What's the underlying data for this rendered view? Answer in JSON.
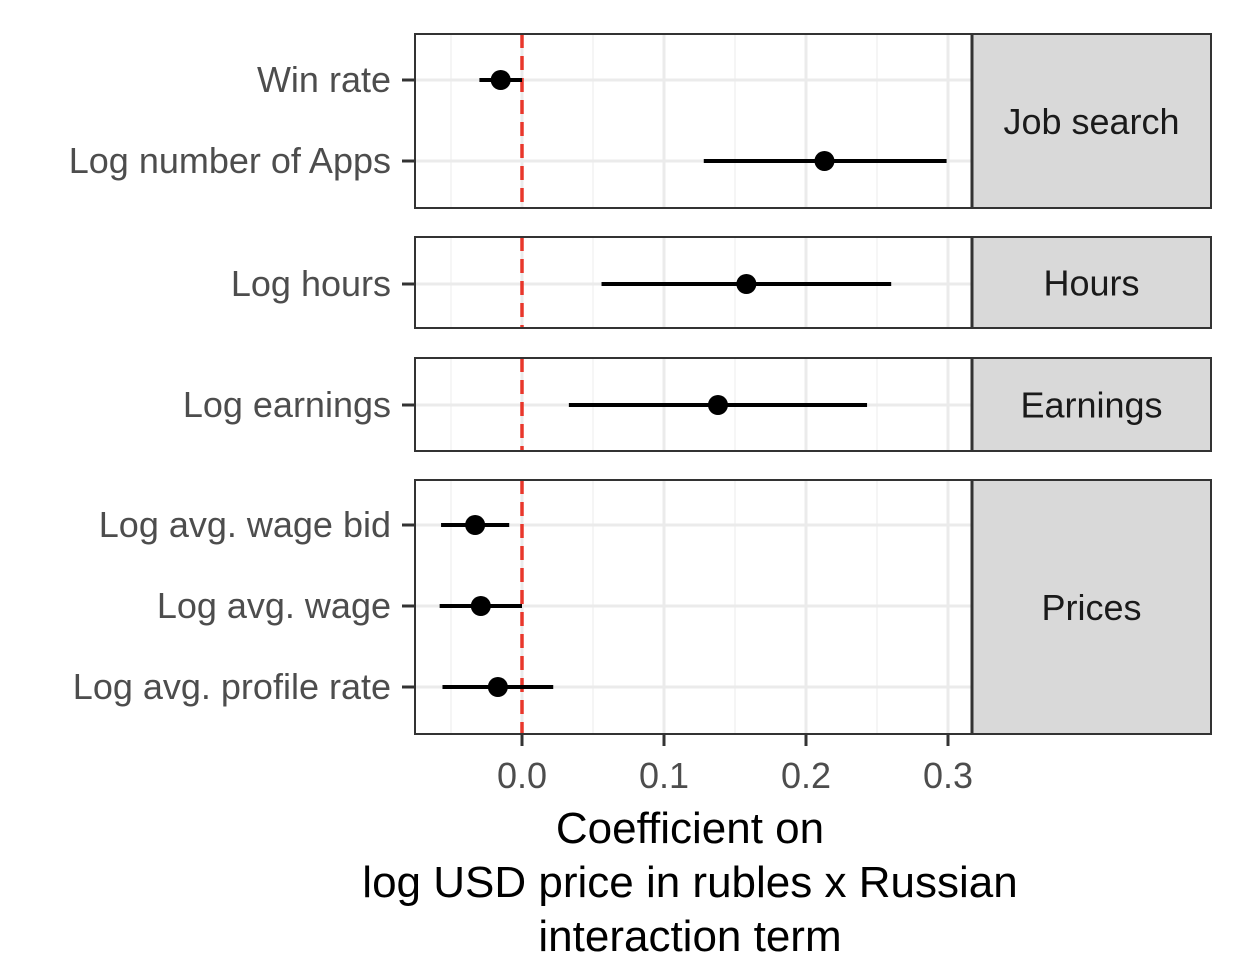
{
  "chart_data": {
    "type": "scatter",
    "subtype": "coefficient-plot-with-error-bars",
    "title": "",
    "xlabel_lines": [
      "Coefficient on",
      "log USD price in rubles x Russian",
      "interaction term"
    ],
    "ylabel": "",
    "xlim": [
      -0.075,
      0.318
    ],
    "xticks": [
      0.0,
      0.1,
      0.2,
      0.3
    ],
    "xtick_labels": [
      "0.0",
      "0.1",
      "0.2",
      "0.3"
    ],
    "reference_line": {
      "x": 0.0,
      "color": "#e8372b",
      "style": "dashed"
    },
    "grid": true,
    "legend": "none",
    "point_color": "#000000",
    "strip_fill": "#d9d9d9",
    "facets": [
      {
        "strip_label": "Job search",
        "rows": [
          {
            "label": "Win rate",
            "estimate": -0.015,
            "ci_low": -0.03,
            "ci_high": 0.0
          },
          {
            "label": "Log number of Apps",
            "estimate": 0.213,
            "ci_low": 0.128,
            "ci_high": 0.299
          }
        ]
      },
      {
        "strip_label": "Hours",
        "rows": [
          {
            "label": "Log hours",
            "estimate": 0.158,
            "ci_low": 0.056,
            "ci_high": 0.26
          }
        ]
      },
      {
        "strip_label": "Earnings",
        "rows": [
          {
            "label": "Log earnings",
            "estimate": 0.138,
            "ci_low": 0.033,
            "ci_high": 0.243
          }
        ]
      },
      {
        "strip_label": "Prices",
        "rows": [
          {
            "label": "Log avg. wage bid",
            "estimate": -0.033,
            "ci_low": -0.057,
            "ci_high": -0.009
          },
          {
            "label": "Log avg. wage",
            "estimate": -0.029,
            "ci_low": -0.058,
            "ci_high": 0.0
          },
          {
            "label": "Log avg. profile rate",
            "estimate": -0.017,
            "ci_low": -0.056,
            "ci_high": 0.022
          }
        ]
      }
    ]
  }
}
